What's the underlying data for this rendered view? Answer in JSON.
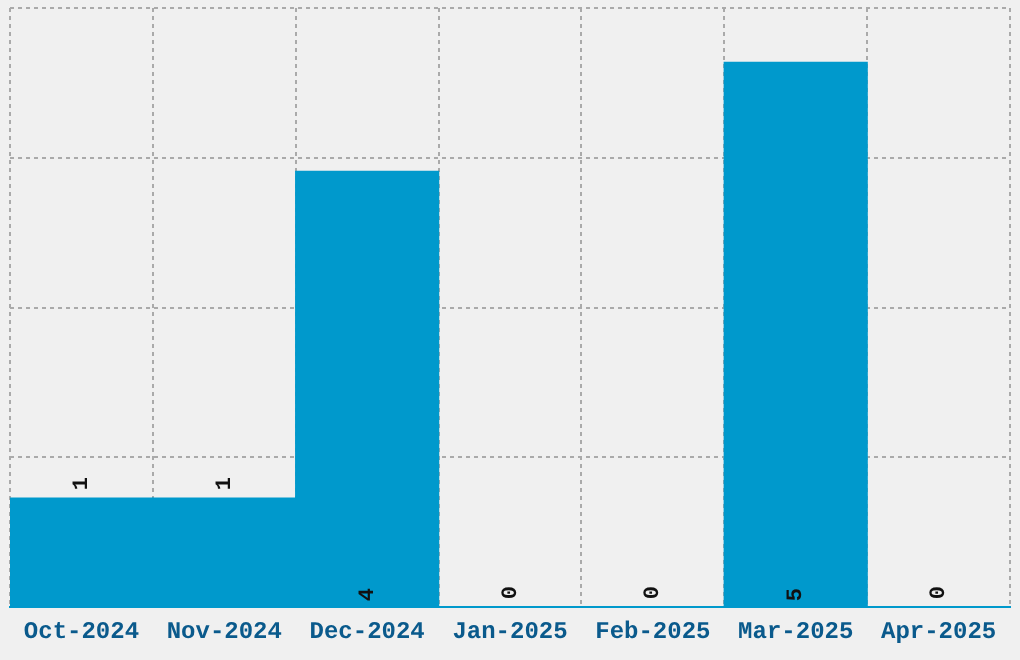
{
  "chart_data": {
    "type": "bar",
    "categories": [
      "Oct-2024",
      "Nov-2024",
      "Dec-2024",
      "Jan-2025",
      "Feb-2025",
      "Mar-2025",
      "Apr-2025"
    ],
    "values": [
      1,
      1,
      4,
      0,
      0,
      5,
      0
    ],
    "color": "#0099cc",
    "ylim": [
      0,
      5.5
    ],
    "yticks": [
      {
        "value": 0,
        "label": null
      },
      {
        "value": 1.375,
        "label": null
      },
      {
        "value": 2.75,
        "label": null
      },
      {
        "value": 4.125,
        "label": null
      },
      {
        "value": 5.5,
        "label": null
      }
    ],
    "grid": true,
    "tick_labels": "x",
    "data_labels": true
  }
}
